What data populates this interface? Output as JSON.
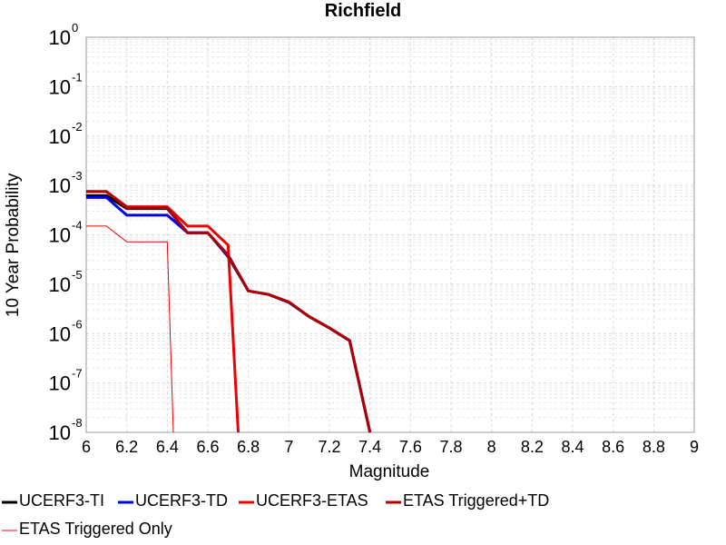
{
  "chart_data": {
    "type": "line",
    "title": "Richfield",
    "xlabel": "Magnitude",
    "ylabel": "10 Year Probability",
    "xlim": [
      6,
      9
    ],
    "ylim": [
      1e-08,
      1
    ],
    "yscale": "log",
    "grid": true,
    "legend_position": "bottom",
    "x_ticks": [
      "6",
      "6.2",
      "6.4",
      "6.6",
      "6.8",
      "7",
      "7.2",
      "7.4",
      "7.6",
      "7.8",
      "8",
      "8.2",
      "8.4",
      "8.6",
      "8.8",
      "9"
    ],
    "y_ticks": [
      {
        "base": "10",
        "exp": "0"
      },
      {
        "base": "10",
        "exp": "-1"
      },
      {
        "base": "10",
        "exp": "-2"
      },
      {
        "base": "10",
        "exp": "-3"
      },
      {
        "base": "10",
        "exp": "-4"
      },
      {
        "base": "10",
        "exp": "-5"
      },
      {
        "base": "10",
        "exp": "-6"
      },
      {
        "base": "10",
        "exp": "-7"
      },
      {
        "base": "10",
        "exp": "-8"
      }
    ],
    "series": [
      {
        "name": "UCERF3-TI",
        "color": "#000000",
        "width": 3,
        "x": [
          6.0,
          6.1,
          6.2,
          6.3,
          6.4,
          6.5,
          6.6,
          6.7,
          6.8,
          6.9,
          7.0,
          7.1,
          7.2,
          7.3,
          7.4
        ],
        "y": [
          0.00062,
          0.00062,
          0.00034,
          0.00034,
          0.00034,
          0.00011,
          0.00011,
          3.9e-05,
          7.3e-06,
          6.2e-06,
          4.3e-06,
          2.2e-06,
          1.3e-06,
          7.2e-07,
          7.5e-09
        ]
      },
      {
        "name": "UCERF3-TD",
        "color": "#0000ee",
        "width": 3,
        "x": [
          6.0,
          6.1,
          6.2,
          6.3,
          6.4,
          6.5,
          6.6,
          6.7,
          6.8,
          6.9,
          7.0,
          7.1,
          7.2,
          7.3,
          7.4
        ],
        "y": [
          0.00057,
          0.00057,
          0.00025,
          0.00025,
          0.00025,
          0.00011,
          0.00011,
          3.6e-05,
          7.3e-06,
          6.2e-06,
          4.3e-06,
          2.2e-06,
          1.3e-06,
          7.2e-07,
          7.5e-09
        ]
      },
      {
        "name": "UCERF3-ETAS",
        "color": "#ee0000",
        "width": 3,
        "x": [
          6.0,
          6.1,
          6.2,
          6.3,
          6.4,
          6.5,
          6.6,
          6.7,
          6.75
        ],
        "y": [
          0.00075,
          0.00075,
          0.00037,
          0.00037,
          0.00037,
          0.00015,
          0.00015,
          6.2e-05,
          7.5e-09
        ]
      },
      {
        "name": "ETAS Triggered+TD",
        "color": "#b00000",
        "width": 3,
        "x": [
          6.0,
          6.1,
          6.2,
          6.3,
          6.4,
          6.5,
          6.6,
          6.7,
          6.8,
          6.9,
          7.0,
          7.1,
          7.2,
          7.3,
          7.4
        ],
        "y": [
          0.00075,
          0.00075,
          0.00035,
          0.00035,
          0.00035,
          0.00011,
          0.00011,
          3.8e-05,
          7.3e-06,
          6.2e-06,
          4.4e-06,
          2.2e-06,
          1.3e-06,
          7.2e-07,
          7.5e-09
        ]
      },
      {
        "name": "ETAS Triggered Only",
        "color": "#ee0000",
        "width": 1,
        "x": [
          6.0,
          6.1,
          6.2,
          6.3,
          6.4,
          6.43
        ],
        "y": [
          0.00015,
          0.00015,
          7.2e-05,
          7.2e-05,
          7.2e-05,
          7.5e-09
        ]
      }
    ]
  }
}
